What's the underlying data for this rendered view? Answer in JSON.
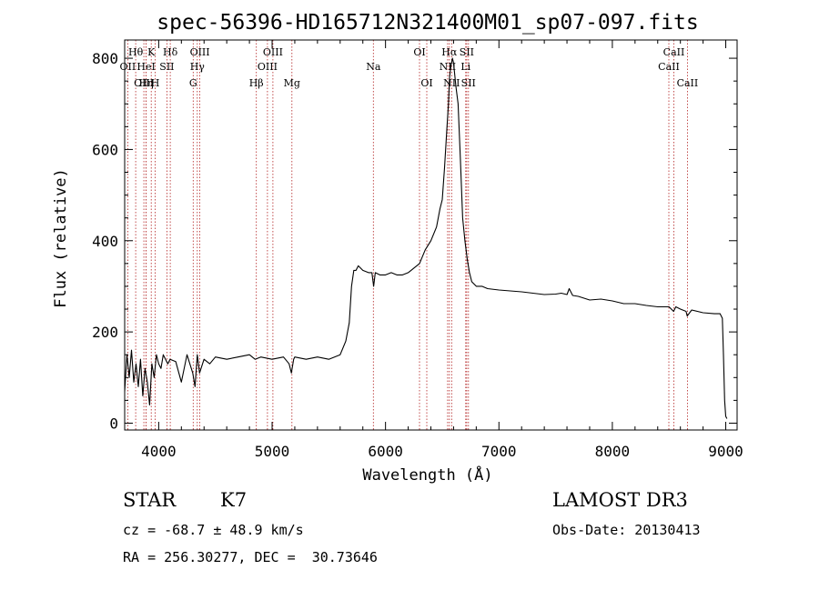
{
  "chart_data": {
    "type": "line",
    "title": "spec-56396-HD165712N321400M01_sp07-097.fits",
    "xlabel": "Wavelength (Å)",
    "ylabel": "Flux (relative)",
    "xlim": [
      3700,
      9100
    ],
    "ylim": [
      -15,
      840
    ],
    "xticks": [
      4000,
      5000,
      6000,
      7000,
      8000,
      9000
    ],
    "yticks": [
      0,
      200,
      400,
      600,
      800
    ],
    "line_color": "#000000",
    "marker_color": "#b22222",
    "series": [
      {
        "name": "flux",
        "x": [
          3700,
          3720,
          3740,
          3760,
          3780,
          3800,
          3820,
          3840,
          3860,
          3880,
          3900,
          3920,
          3940,
          3960,
          3980,
          4000,
          4020,
          4040,
          4060,
          4080,
          4100,
          4150,
          4200,
          4250,
          4300,
          4320,
          4340,
          4360,
          4400,
          4450,
          4500,
          4600,
          4700,
          4800,
          4850,
          4900,
          5000,
          5100,
          5150,
          5170,
          5190,
          5200,
          5300,
          5400,
          5500,
          5600,
          5650,
          5680,
          5700,
          5720,
          5740,
          5760,
          5800,
          5850,
          5880,
          5895,
          5910,
          5950,
          6000,
          6050,
          6100,
          6150,
          6200,
          6250,
          6300,
          6350,
          6400,
          6450,
          6480,
          6500,
          6520,
          6540,
          6555,
          6565,
          6575,
          6590,
          6600,
          6620,
          6640,
          6660,
          6680,
          6700,
          6720,
          6740,
          6760,
          6780,
          6800,
          6850,
          6900,
          7000,
          7100,
          7200,
          7300,
          7400,
          7500,
          7550,
          7600,
          7620,
          7650,
          7700,
          7800,
          7900,
          8000,
          8100,
          8200,
          8300,
          8400,
          8500,
          8540,
          8560,
          8600,
          8650,
          8660,
          8700,
          8800,
          8900,
          8950,
          8970,
          8980,
          8990,
          9000,
          9010
        ],
        "y": [
          70,
          150,
          100,
          160,
          90,
          130,
          80,
          140,
          60,
          120,
          90,
          40,
          130,
          100,
          150,
          130,
          120,
          150,
          140,
          130,
          140,
          135,
          90,
          150,
          110,
          80,
          150,
          110,
          140,
          130,
          145,
          140,
          145,
          150,
          140,
          145,
          140,
          145,
          130,
          110,
          140,
          145,
          140,
          145,
          140,
          150,
          180,
          220,
          300,
          335,
          335,
          345,
          335,
          330,
          330,
          300,
          330,
          325,
          325,
          330,
          325,
          325,
          330,
          340,
          350,
          380,
          400,
          430,
          470,
          490,
          560,
          640,
          700,
          760,
          780,
          800,
          790,
          740,
          700,
          580,
          450,
          400,
          360,
          330,
          310,
          305,
          300,
          300,
          295,
          292,
          290,
          288,
          285,
          282,
          283,
          285,
          282,
          295,
          280,
          278,
          270,
          272,
          268,
          262,
          262,
          258,
          255,
          255,
          245,
          255,
          250,
          245,
          235,
          248,
          242,
          240,
          240,
          230,
          150,
          50,
          15,
          10
        ]
      }
    ],
    "lines": [
      {
        "label": "OII",
        "x": 3727,
        "row": 2
      },
      {
        "label": "Hθ",
        "x": 3797,
        "row": 1
      },
      {
        "label": "OIII",
        "x": 3869,
        "row": 3
      },
      {
        "label": "HeI",
        "x": 3889,
        "row": 2
      },
      {
        "label": "Hη",
        "x": 3889,
        "row": 3
      },
      {
        "label": "K",
        "x": 3934,
        "row": 1
      },
      {
        "label": "H",
        "x": 3969,
        "row": 3
      },
      {
        "label": "SII",
        "x": 4072,
        "row": 2
      },
      {
        "label": "Hδ",
        "x": 4102,
        "row": 1
      },
      {
        "label": "G",
        "x": 4304,
        "row": 3
      },
      {
        "label": "Hγ",
        "x": 4340,
        "row": 2
      },
      {
        "label": "OIII",
        "x": 4363,
        "row": 1
      },
      {
        "label": "Hβ",
        "x": 4861,
        "row": 3
      },
      {
        "label": "OIII",
        "x": 4959,
        "row": 2
      },
      {
        "label": "OIII",
        "x": 5007,
        "row": 1
      },
      {
        "label": "Mg",
        "x": 5175,
        "row": 3
      },
      {
        "label": "Na",
        "x": 5893,
        "row": 2
      },
      {
        "label": "OI",
        "x": 6300,
        "row": 1
      },
      {
        "label": "OI",
        "x": 6364,
        "row": 3
      },
      {
        "label": "NII",
        "x": 6548,
        "row": 2
      },
      {
        "label": "Hα",
        "x": 6563,
        "row": 1
      },
      {
        "label": "NII",
        "x": 6583,
        "row": 3
      },
      {
        "label": "Li",
        "x": 6707,
        "row": 2
      },
      {
        "label": "SII",
        "x": 6716,
        "row": 1
      },
      {
        "label": "SII",
        "x": 6731,
        "row": 3
      },
      {
        "label": "CaII",
        "x": 8498,
        "row": 2
      },
      {
        "label": "CaII",
        "x": 8542,
        "row": 1
      },
      {
        "label": "CaII",
        "x": 8662,
        "row": 3
      }
    ]
  },
  "info": {
    "class": "STAR",
    "subclass": "K7",
    "survey": "LAMOST DR3",
    "cz": "cz = -68.7 ± 48.9 km/s",
    "obs_date": "Obs-Date: 20130413",
    "coords": "RA = 256.30277, DEC =  30.73646"
  }
}
